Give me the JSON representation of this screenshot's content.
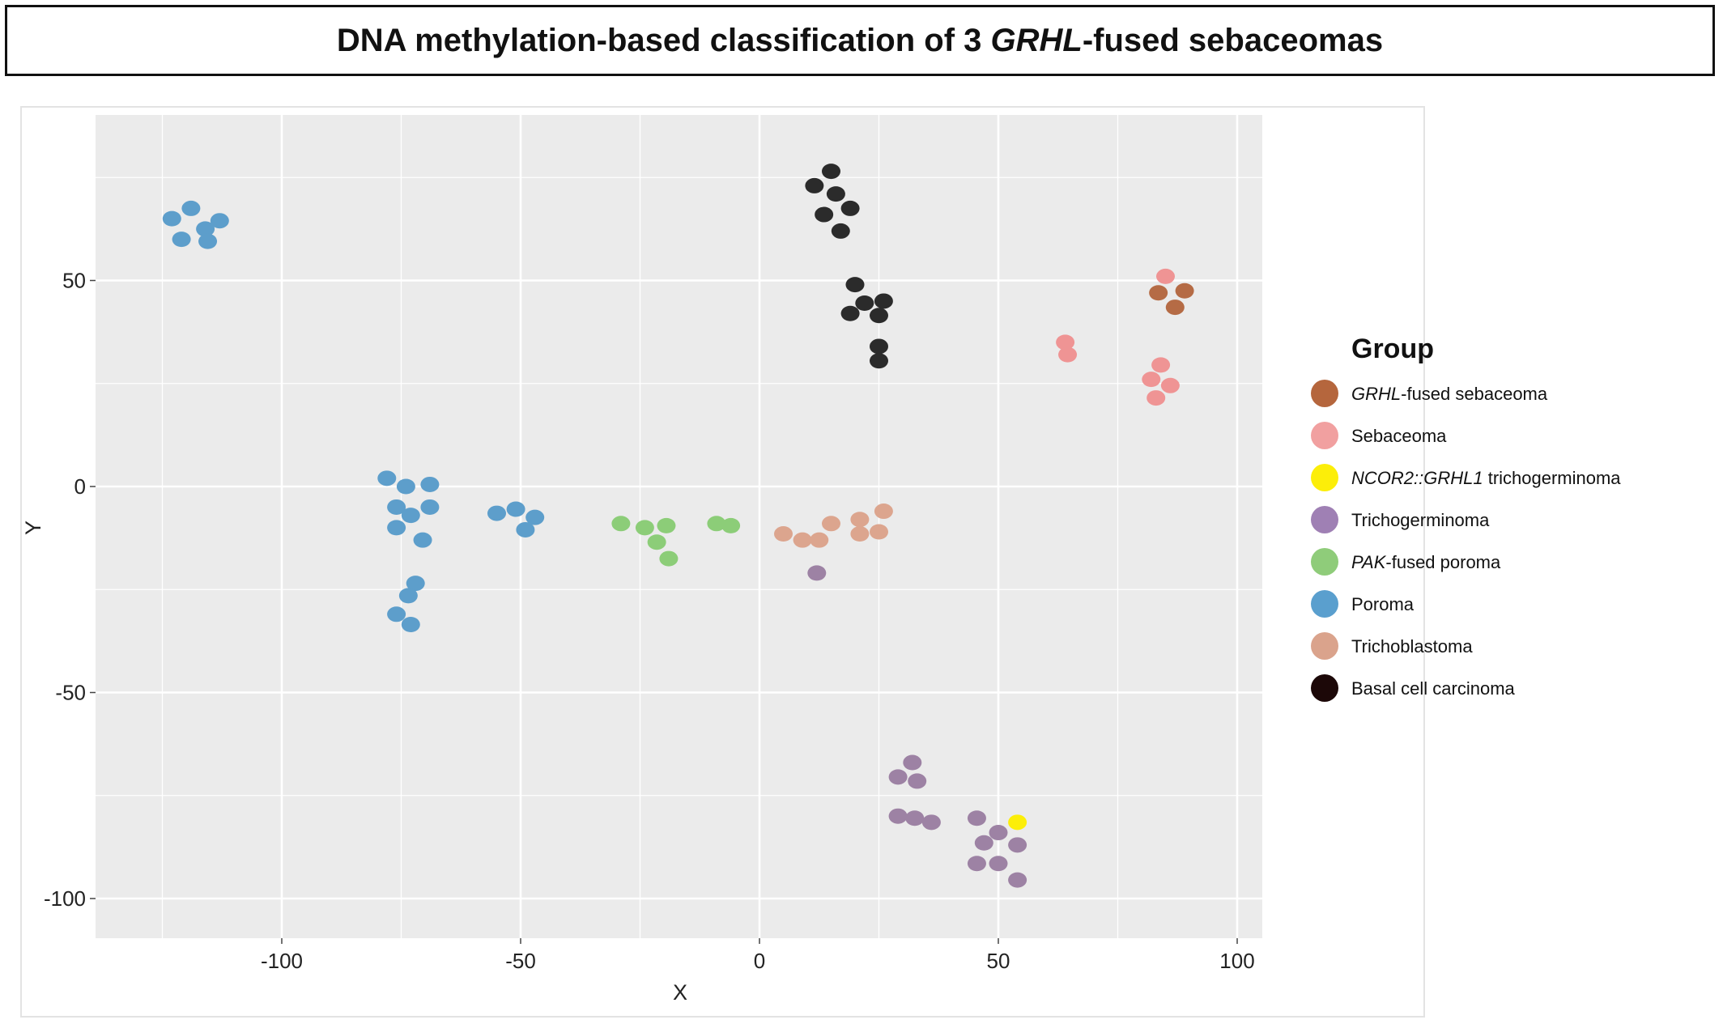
{
  "title": {
    "prefix": "DNA methylation-based classification of 3 ",
    "italic": "GRHL",
    "suffix": "-fused sebaceomas"
  },
  "chart_data": {
    "type": "scatter",
    "xlabel": "X",
    "ylabel": "Y",
    "xlim": [
      -140,
      105
    ],
    "ylim": [
      -110,
      90
    ],
    "x_ticks": [
      -100,
      -50,
      0,
      50,
      100
    ],
    "y_ticks": [
      50,
      0,
      -50,
      -100
    ],
    "x_tick_labels": [
      "-100",
      "-50",
      "0",
      "50",
      "100"
    ],
    "y_tick_labels": [
      "50",
      "0",
      "-50",
      "-100"
    ],
    "grid": true,
    "legend": {
      "title": "Group",
      "position": "right",
      "entries": [
        {
          "key": "grhl_sebaceoma",
          "italic": "GRHL",
          "text": "-fused sebaceoma",
          "color": "#b5663d"
        },
        {
          "key": "sebaceoma",
          "italic": "",
          "text": "Sebaceoma",
          "color": "#f1a0a0"
        },
        {
          "key": "ncor2_trichogerminoma",
          "italic": "NCOR2::GRHL1",
          "text": " trichogerminoma",
          "color": "#fcee09"
        },
        {
          "key": "trichogerminoma",
          "italic": "",
          "text": "Trichogerminoma",
          "color": "#9f80b4"
        },
        {
          "key": "pak_poroma",
          "italic": "PAK",
          "text": "-fused poroma",
          "color": "#8fcc7a"
        },
        {
          "key": "poroma",
          "italic": "",
          "text": "Poroma",
          "color": "#5a9fce"
        },
        {
          "key": "trichoblastoma",
          "italic": "",
          "text": "Trichoblastoma",
          "color": "#daa38c"
        },
        {
          "key": "bcc",
          "italic": "",
          "text": "Basal cell carcinoma",
          "color": "#1c0808"
        }
      ]
    },
    "series": [
      {
        "key": "poroma",
        "color": "#5d9ecb",
        "points": [
          [
            -123,
            65
          ],
          [
            -119,
            67.5
          ],
          [
            -116,
            62.5
          ],
          [
            -113,
            64.5
          ],
          [
            -121,
            60
          ],
          [
            -115.5,
            59.5
          ],
          [
            -78,
            2
          ],
          [
            -74,
            0
          ],
          [
            -69,
            0.5
          ],
          [
            -76,
            -5
          ],
          [
            -73,
            -7
          ],
          [
            -69,
            -5
          ],
          [
            -76,
            -10
          ],
          [
            -70.5,
            -13
          ],
          [
            -72,
            -23.5
          ],
          [
            -73.5,
            -26.5
          ],
          [
            -76,
            -31
          ],
          [
            -73,
            -33.5
          ],
          [
            -55,
            -6.5
          ],
          [
            -51,
            -5.5
          ],
          [
            -47,
            -7.5
          ],
          [
            -49,
            -10.5
          ]
        ]
      },
      {
        "key": "bcc",
        "color": "#2b2b2b",
        "points": [
          [
            15,
            76.5
          ],
          [
            11.5,
            73
          ],
          [
            16,
            71
          ],
          [
            13.5,
            66
          ],
          [
            19,
            67.5
          ],
          [
            17,
            62
          ],
          [
            20,
            49
          ],
          [
            22,
            44.5
          ],
          [
            26,
            45
          ],
          [
            19,
            42
          ],
          [
            25,
            41.5
          ],
          [
            25,
            34
          ],
          [
            25,
            30.5
          ]
        ]
      },
      {
        "key": "sebaceoma",
        "color": "#ef9494",
        "points": [
          [
            85,
            51
          ],
          [
            64,
            35
          ],
          [
            64.5,
            32
          ],
          [
            84,
            29.5
          ],
          [
            82,
            26
          ],
          [
            86,
            24.5
          ],
          [
            83,
            21.5
          ]
        ]
      },
      {
        "key": "grhl_sebaceoma",
        "color": "#b56b45",
        "points": [
          [
            83.5,
            47
          ],
          [
            89,
            47.5
          ],
          [
            87,
            43.5
          ]
        ]
      },
      {
        "key": "pak_poroma",
        "color": "#8ccd78",
        "points": [
          [
            -29,
            -9
          ],
          [
            -24,
            -10
          ],
          [
            -19.5,
            -9.5
          ],
          [
            -21.5,
            -13.5
          ],
          [
            -19,
            -17.5
          ],
          [
            -9,
            -9
          ],
          [
            -6,
            -9.5
          ]
        ]
      },
      {
        "key": "trichoblastoma",
        "color": "#dca58e",
        "points": [
          [
            5,
            -11.5
          ],
          [
            9,
            -13
          ],
          [
            12.5,
            -13
          ],
          [
            15,
            -9
          ],
          [
            21,
            -8
          ],
          [
            26,
            -6
          ],
          [
            21,
            -11.5
          ],
          [
            25,
            -11
          ]
        ]
      },
      {
        "key": "trichogerminoma",
        "color": "#9d82a4",
        "points": [
          [
            12,
            -21
          ],
          [
            32,
            -67
          ],
          [
            29,
            -70.5
          ],
          [
            33,
            -71.5
          ],
          [
            29,
            -80
          ],
          [
            32.5,
            -80.5
          ],
          [
            36,
            -81.5
          ],
          [
            45.5,
            -80.5
          ],
          [
            50,
            -84
          ],
          [
            47,
            -86.5
          ],
          [
            54,
            -87
          ],
          [
            45.5,
            -91.5
          ],
          [
            50,
            -91.5
          ],
          [
            54,
            -95.5
          ]
        ]
      },
      {
        "key": "ncor2_trichogerminoma",
        "color": "#fcee09",
        "points": [
          [
            54,
            -81.5
          ]
        ]
      }
    ]
  }
}
